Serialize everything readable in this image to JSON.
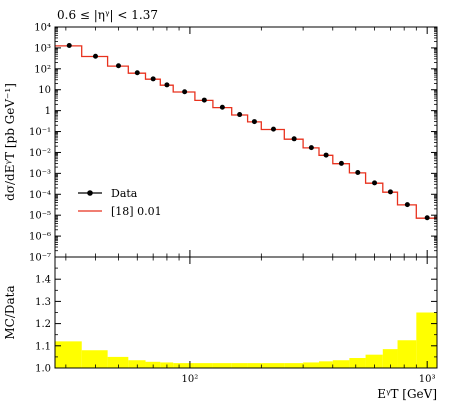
{
  "chart_data": [
    {
      "type": "line",
      "panel": "main",
      "title": "0.6 ≤ |ηᵞ| < 1.37",
      "ylabel": "dσ/dEᵞT [pb GeV⁻¹]",
      "yscale": "log",
      "xscale": "log",
      "xlim": [
        27,
        1100
      ],
      "ylim": [
        1e-07,
        10000.0
      ],
      "ytick_labels": [
        "10⁻⁷",
        "10⁻⁶",
        "10⁻⁵",
        "10⁻⁴",
        "10⁻³",
        "10⁻²",
        "10⁻¹",
        "1",
        "10",
        "10²",
        "10³",
        "10⁴"
      ],
      "ytick_values": [
        1e-07,
        1e-06,
        1e-05,
        0.0001,
        0.001,
        0.01,
        0.1,
        1,
        10,
        100,
        1000,
        10000
      ],
      "legend_position": "lower-left",
      "bin_edges": [
        27,
        35,
        45,
        55,
        65,
        75,
        85,
        105,
        125,
        150,
        175,
        200,
        250,
        300,
        350,
        400,
        470,
        550,
        650,
        750,
        900,
        1100
      ],
      "series": [
        {
          "name": "Data",
          "style": "points",
          "color": "#000000",
          "x": [
            31,
            40,
            50,
            60,
            70,
            80,
            95,
            115,
            137,
            162,
            187,
            225,
            275,
            325,
            375,
            435,
            510,
            600,
            700,
            825,
            1000
          ],
          "values": [
            1300,
            400,
            140,
            65,
            33,
            17,
            8.0,
            3.2,
            1.45,
            0.65,
            0.3,
            0.13,
            0.045,
            0.017,
            0.0075,
            0.003,
            0.0011,
            0.00035,
            0.00013,
            3.2e-05,
            7.5e-06
          ]
        },
        {
          "name": "[18] 0.01",
          "style": "step",
          "color": "#e8321e",
          "values": [
            1250,
            390,
            135,
            62,
            32,
            16.5,
            7.8,
            3.1,
            1.4,
            0.62,
            0.29,
            0.125,
            0.043,
            0.0165,
            0.0073,
            0.0029,
            0.00105,
            0.00034,
            0.000125,
            3.1e-05,
            7.2e-06
          ]
        }
      ]
    },
    {
      "type": "area",
      "panel": "ratio",
      "ylabel": "MC/Data",
      "xlabel": "EᵞT [GeV]",
      "xscale": "log",
      "xlim": [
        27,
        1100
      ],
      "ylim": [
        1.0,
        1.5
      ],
      "ytick_labels": [
        "1.0",
        "1.1",
        "1.2",
        "1.3",
        "1.4"
      ],
      "ytick_values": [
        1.0,
        1.1,
        1.2,
        1.3,
        1.4
      ],
      "xtick_labels": [
        "10²",
        "10³"
      ],
      "xtick_values": [
        100,
        1000
      ],
      "band_color": "#ffff00",
      "bin_edges": [
        27,
        35,
        45,
        55,
        65,
        75,
        85,
        105,
        125,
        150,
        175,
        200,
        250,
        300,
        350,
        400,
        470,
        550,
        650,
        750,
        900,
        1100
      ],
      "band_upper": [
        1.12,
        1.08,
        1.05,
        1.035,
        1.028,
        1.025,
        1.022,
        1.022,
        1.022,
        1.022,
        1.022,
        1.022,
        1.022,
        1.025,
        1.03,
        1.035,
        1.045,
        1.06,
        1.085,
        1.125,
        1.25
      ],
      "band_lower": [
        1.0,
        1.0,
        1.0,
        1.0,
        1.0,
        1.0,
        1.0,
        1.0,
        1.0,
        1.0,
        1.0,
        1.0,
        1.0,
        1.0,
        1.0,
        1.0,
        1.0,
        1.0,
        1.0,
        1.0,
        1.0
      ]
    }
  ]
}
